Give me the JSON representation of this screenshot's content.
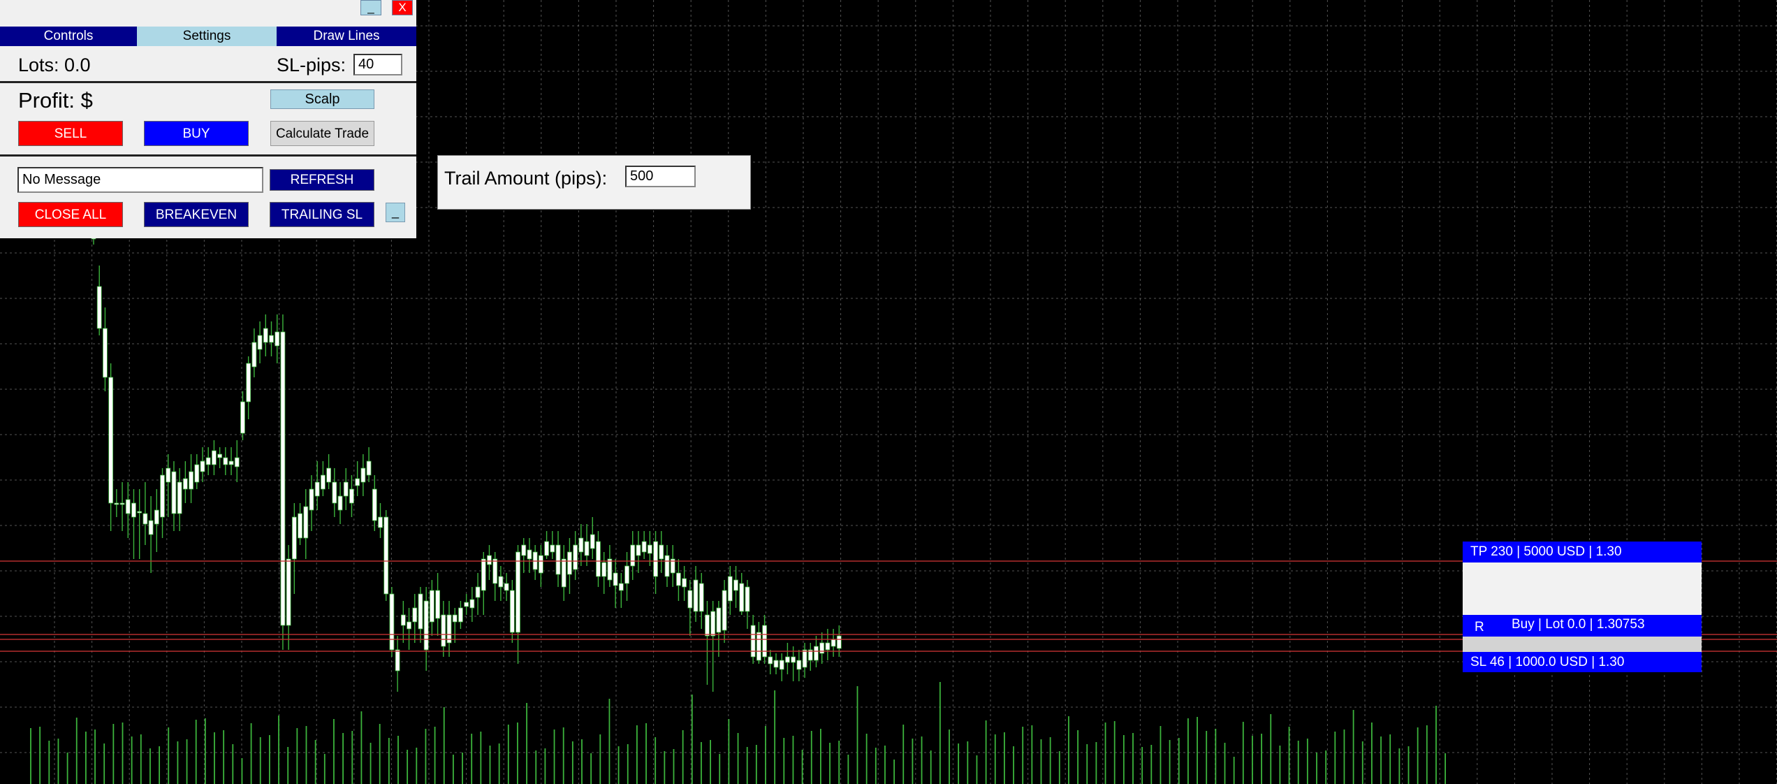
{
  "panel": {
    "minimize_label": "_",
    "close_label": "X",
    "tabs": [
      {
        "label": "Controls"
      },
      {
        "label": "Settings"
      },
      {
        "label": "Draw Lines"
      }
    ],
    "lots_label": "Lots: 0.0",
    "sl_pips_label": "SL-pips:",
    "sl_pips_value": "40",
    "profit_label": "Profit: $",
    "scalp_label": "Scalp",
    "sell_label": "SELL",
    "buy_label": "BUY",
    "calculate_label": "Calculate Trade",
    "message_value": "No Message",
    "refresh_label": "REFRESH",
    "close_all_label": "CLOSE ALL",
    "breakeven_label": "BREAKEVEN",
    "trailing_label": "TRAILING SL",
    "small_button_label": "_"
  },
  "trail": {
    "label": "Trail Amount (pips):",
    "value": "500"
  },
  "trade_lines": {
    "tp_label": "TP 230 | 5000 USD | 1.30",
    "r_label": "R",
    "entry_label": "Buy | Lot 0.0 | 1.30753",
    "sl_label": "SL 46 | 1000.0 USD | 1.30"
  },
  "colors": {
    "sell": "#ff0000",
    "buy": "#0000ff",
    "navy": "#00008b",
    "tab_active": "#add8e6",
    "chart_bg": "#000000",
    "candle_up": "#ffffff",
    "wick": "#3cb43c",
    "grid": "#808080",
    "level_line": "#c83232"
  }
}
